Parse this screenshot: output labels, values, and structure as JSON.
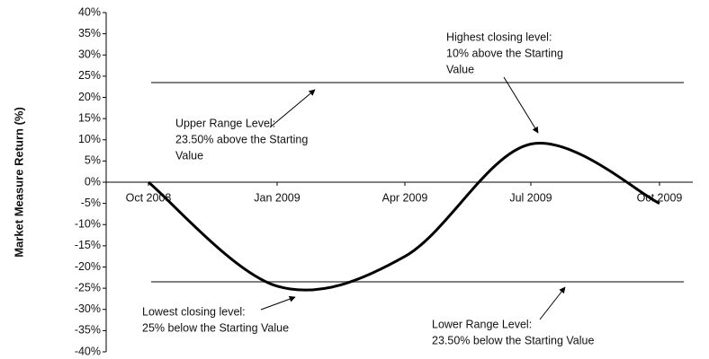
{
  "chart_data": {
    "type": "line",
    "y_label": "Market Measure Return (%)",
    "categories": [
      "Oct 2008",
      "Jan 2009",
      "Apr 2009",
      "Jul 2009",
      "Oct 2009"
    ],
    "series": [
      {
        "color": "#000000",
        "values": [
          0,
          -24.5,
          -17.5,
          9,
          -5
        ]
      }
    ],
    "ylim": [
      -40,
      40
    ],
    "yticks": [
      {
        "value": 40,
        "label": "40%"
      },
      {
        "value": 35,
        "label": "35%"
      },
      {
        "value": 30,
        "label": "30%"
      },
      {
        "value": 25,
        "label": "25%"
      },
      {
        "value": 20,
        "label": "20%"
      },
      {
        "value": 15,
        "label": "15%"
      },
      {
        "value": 10,
        "label": "10%"
      },
      {
        "value": 5,
        "label": "5%"
      },
      {
        "value": 0,
        "label": "0%"
      },
      {
        "value": -5,
        "label": "-5%"
      },
      {
        "value": -10,
        "label": "-10%"
      },
      {
        "value": -15,
        "label": "-15%"
      },
      {
        "value": -20,
        "label": "-20%"
      },
      {
        "value": -25,
        "label": "-25%"
      },
      {
        "value": -30,
        "label": "-30%"
      },
      {
        "value": -35,
        "label": "-35%"
      },
      {
        "value": -40,
        "label": "-40%"
      }
    ],
    "reference_lines": [
      {
        "value": 23.5,
        "color": "#808080"
      },
      {
        "value": -23.5,
        "color": "#808080"
      }
    ],
    "annotations": [
      {
        "lines": [
          "Highest closing level:",
          "10% above the Starting",
          "Value"
        ]
      },
      {
        "lines": [
          "Upper Range Level:",
          "23.50% above the Starting",
          "Value"
        ]
      },
      {
        "lines": [
          "Lowest closing level:",
          "25% below the Starting Value"
        ]
      },
      {
        "lines": [
          "Lower Range Level:",
          "23.50% below the Starting Value"
        ]
      }
    ]
  }
}
